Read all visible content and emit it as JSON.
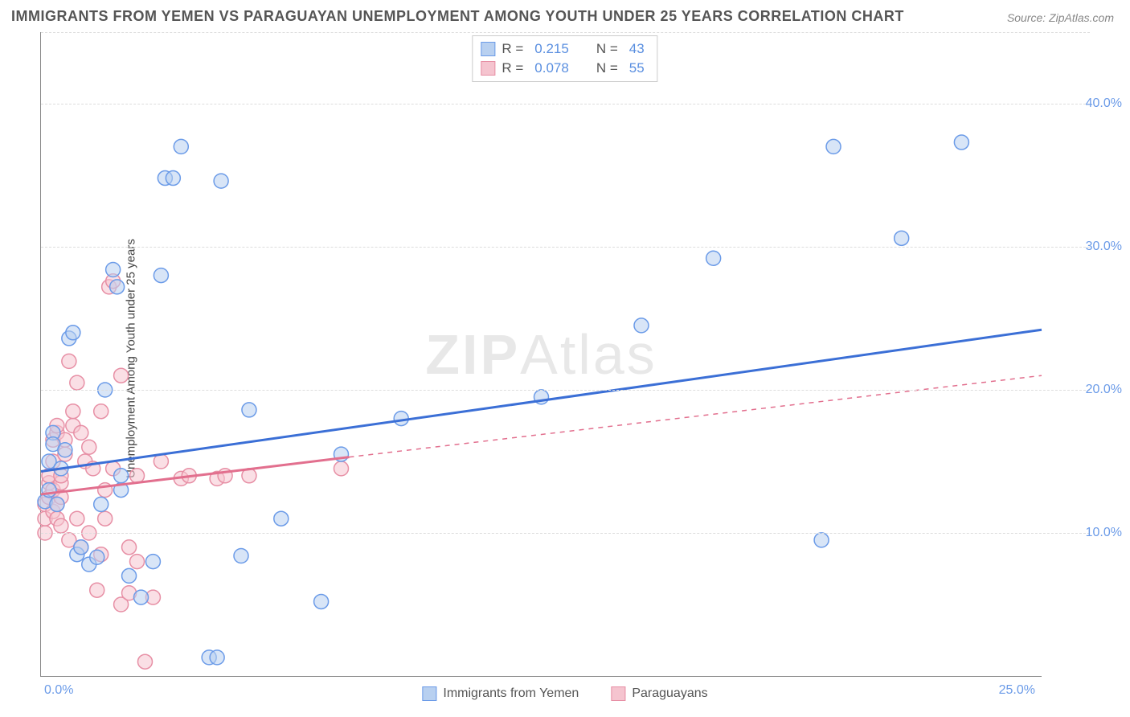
{
  "title": "IMMIGRANTS FROM YEMEN VS PARAGUAYAN UNEMPLOYMENT AMONG YOUTH UNDER 25 YEARS CORRELATION CHART",
  "source": "Source: ZipAtlas.com",
  "watermark_a": "ZIP",
  "watermark_b": "Atlas",
  "y_axis_label": "Unemployment Among Youth under 25 years",
  "xlim": [
    0,
    25
  ],
  "ylim": [
    0,
    45
  ],
  "y_ticks": [
    10,
    20,
    30,
    40
  ],
  "y_tick_labels": [
    "10.0%",
    "20.0%",
    "30.0%",
    "40.0%"
  ],
  "x_tick_labels": {
    "left": "0.0%",
    "right": "25.0%"
  },
  "grid_color": "#dddddd",
  "axis_color": "#888888",
  "series": {
    "yemen": {
      "label": "Immigrants from Yemen",
      "fill": "#b8d0f0",
      "stroke": "#6b9be8",
      "line_color": "#3b6fd6",
      "R": "0.215",
      "N": "43",
      "trend": {
        "x1": 0,
        "y1": 14.3,
        "x2": 25,
        "y2": 24.2
      },
      "points": [
        [
          0.1,
          12.2
        ],
        [
          0.2,
          13.0
        ],
        [
          0.2,
          15.0
        ],
        [
          0.3,
          17.0
        ],
        [
          0.3,
          16.2
        ],
        [
          0.4,
          12.0
        ],
        [
          0.5,
          14.5
        ],
        [
          0.6,
          15.8
        ],
        [
          0.7,
          23.6
        ],
        [
          0.8,
          24.0
        ],
        [
          0.9,
          8.5
        ],
        [
          1.0,
          9.0
        ],
        [
          1.2,
          7.8
        ],
        [
          1.4,
          8.3
        ],
        [
          1.5,
          12.0
        ],
        [
          1.6,
          20.0
        ],
        [
          1.8,
          28.4
        ],
        [
          1.9,
          27.2
        ],
        [
          2.0,
          14.0
        ],
        [
          2.0,
          13.0
        ],
        [
          2.2,
          7.0
        ],
        [
          2.5,
          5.5
        ],
        [
          2.8,
          8.0
        ],
        [
          3.0,
          28.0
        ],
        [
          3.1,
          34.8
        ],
        [
          3.3,
          34.8
        ],
        [
          3.5,
          37.0
        ],
        [
          4.5,
          34.6
        ],
        [
          4.2,
          1.3
        ],
        [
          4.4,
          1.3
        ],
        [
          5.0,
          8.4
        ],
        [
          5.2,
          18.6
        ],
        [
          6.0,
          11.0
        ],
        [
          7.0,
          5.2
        ],
        [
          7.5,
          15.5
        ],
        [
          9.0,
          18.0
        ],
        [
          12.5,
          19.5
        ],
        [
          15.0,
          24.5
        ],
        [
          16.8,
          29.2
        ],
        [
          19.5,
          9.5
        ],
        [
          19.8,
          37.0
        ],
        [
          21.5,
          30.6
        ],
        [
          23.0,
          37.3
        ]
      ]
    },
    "paraguay": {
      "label": "Paraguayans",
      "fill": "#f5c4cf",
      "stroke": "#e78fa5",
      "line_color": "#e26f8e",
      "R": "0.078",
      "N": "55",
      "trend_solid": {
        "x1": 0,
        "y1": 12.7,
        "x2": 7.7,
        "y2": 15.3
      },
      "trend_dash": {
        "x1": 7.7,
        "y1": 15.3,
        "x2": 25,
        "y2": 21.0
      },
      "points": [
        [
          0.1,
          10.0
        ],
        [
          0.1,
          11.0
        ],
        [
          0.1,
          12.0
        ],
        [
          0.2,
          12.5
        ],
        [
          0.2,
          13.5
        ],
        [
          0.2,
          14.0
        ],
        [
          0.3,
          11.5
        ],
        [
          0.3,
          13.0
        ],
        [
          0.3,
          15.0
        ],
        [
          0.3,
          16.5
        ],
        [
          0.4,
          17.0
        ],
        [
          0.4,
          17.5
        ],
        [
          0.4,
          11.0
        ],
        [
          0.4,
          12.0
        ],
        [
          0.5,
          10.5
        ],
        [
          0.5,
          12.5
        ],
        [
          0.5,
          13.5
        ],
        [
          0.5,
          14.0
        ],
        [
          0.6,
          15.5
        ],
        [
          0.6,
          16.5
        ],
        [
          0.7,
          9.5
        ],
        [
          0.7,
          22.0
        ],
        [
          0.8,
          17.5
        ],
        [
          0.8,
          18.5
        ],
        [
          0.9,
          11.0
        ],
        [
          0.9,
          20.5
        ],
        [
          1.0,
          9.0
        ],
        [
          1.0,
          17.0
        ],
        [
          1.1,
          15.0
        ],
        [
          1.2,
          10.0
        ],
        [
          1.2,
          16.0
        ],
        [
          1.3,
          14.5
        ],
        [
          1.4,
          6.0
        ],
        [
          1.5,
          8.5
        ],
        [
          1.5,
          18.5
        ],
        [
          1.6,
          11.0
        ],
        [
          1.6,
          13.0
        ],
        [
          1.7,
          27.2
        ],
        [
          1.8,
          27.6
        ],
        [
          1.8,
          14.5
        ],
        [
          2.0,
          5.0
        ],
        [
          2.0,
          21.0
        ],
        [
          2.2,
          5.8
        ],
        [
          2.2,
          9.0
        ],
        [
          2.4,
          8.0
        ],
        [
          2.4,
          14.0
        ],
        [
          2.6,
          1.0
        ],
        [
          2.8,
          5.5
        ],
        [
          3.0,
          15.0
        ],
        [
          3.5,
          13.8
        ],
        [
          3.7,
          14.0
        ],
        [
          4.4,
          13.8
        ],
        [
          4.6,
          14.0
        ],
        [
          5.2,
          14.0
        ],
        [
          7.5,
          14.5
        ]
      ]
    }
  },
  "legend_labels": {
    "R": "R  =",
    "N": "N  ="
  },
  "marker_radius": 9,
  "marker_opacity": 0.55,
  "trend_width": 3
}
